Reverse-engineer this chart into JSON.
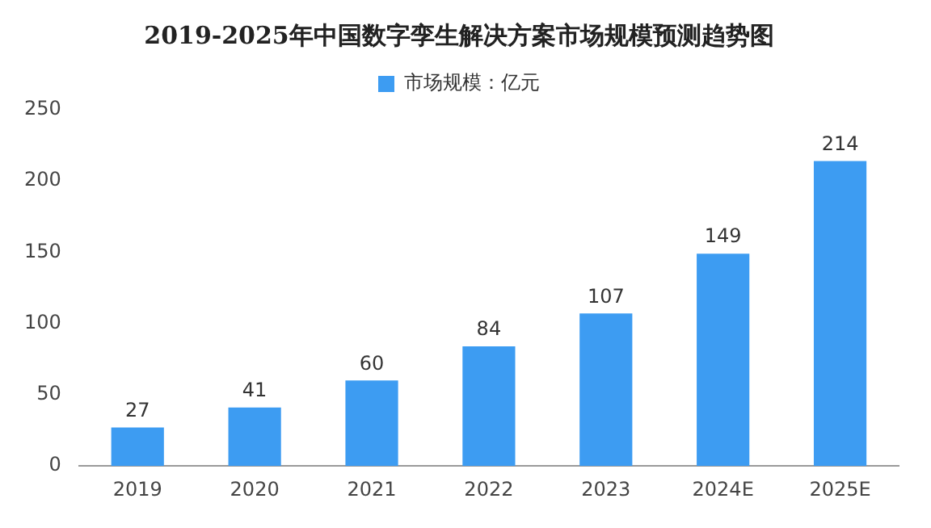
{
  "chart_data": {
    "type": "bar",
    "title": "2019-2025年中国数字孪生解决方案市场规模预测趋势图",
    "categories": [
      "2019",
      "2020",
      "2021",
      "2022",
      "2023",
      "2024E",
      "2025E"
    ],
    "series": [
      {
        "name": "市场规模：亿元",
        "color": "#3d9cf2",
        "values": [
          27,
          41,
          60,
          84,
          107,
          149,
          214
        ]
      }
    ],
    "ylim": [
      0,
      250
    ],
    "yticks": [
      0,
      50,
      100,
      150,
      200,
      250
    ],
    "grid": false,
    "legend": "top",
    "data_labels": true
  }
}
